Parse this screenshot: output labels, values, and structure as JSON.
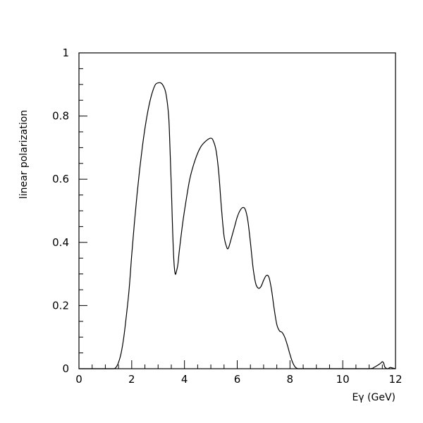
{
  "chart_data": {
    "type": "line",
    "title": "",
    "xlabel": "Eγ (GeV)",
    "ylabel": "linear polarization",
    "xlim": [
      0,
      12
    ],
    "ylim": [
      0,
      1
    ],
    "x_ticks": [
      0,
      2,
      4,
      6,
      8,
      10,
      12
    ],
    "x_tick_labels": [
      "0",
      "2",
      "4",
      "6",
      "8",
      "10",
      "12"
    ],
    "y_ticks": [
      0,
      0.2,
      0.4,
      0.6,
      0.8,
      1
    ],
    "y_tick_labels": [
      "0",
      "0.2",
      "0.4",
      "0.6",
      "0.8",
      "1"
    ],
    "grid": false,
    "legend": "none",
    "line_color": "#000000",
    "series": [
      {
        "x": [
          0,
          1.0,
          1.3,
          1.4,
          1.5,
          1.6,
          1.7,
          1.8,
          1.9,
          2.0,
          2.1,
          2.2,
          2.3,
          2.4,
          2.5,
          2.6,
          2.7,
          2.8,
          2.9,
          3.0,
          3.1,
          3.2,
          3.3,
          3.4,
          3.45,
          3.5,
          3.55,
          3.6,
          3.65,
          3.7,
          3.75,
          3.8,
          3.9,
          4.0,
          4.2,
          4.4,
          4.6,
          4.8,
          5.0,
          5.1,
          5.2,
          5.3,
          5.4,
          5.5,
          5.6,
          5.65,
          5.7,
          5.8,
          5.9,
          6.0,
          6.1,
          6.2,
          6.3,
          6.4,
          6.5,
          6.6,
          6.7,
          6.8,
          6.9,
          7.0,
          7.1,
          7.2,
          7.3,
          7.4,
          7.5,
          7.6,
          7.7,
          7.8,
          7.9,
          8.0,
          8.1,
          8.2,
          8.3,
          8.4,
          8.5,
          9.0,
          10.0,
          11.0,
          11.2,
          11.4,
          11.5,
          11.55,
          11.6,
          11.7,
          11.8,
          11.9,
          12.0
        ],
        "y": [
          0,
          0,
          0.0,
          0.004,
          0.02,
          0.05,
          0.1,
          0.17,
          0.25,
          0.36,
          0.46,
          0.55,
          0.63,
          0.7,
          0.76,
          0.81,
          0.85,
          0.88,
          0.9,
          0.905,
          0.905,
          0.895,
          0.87,
          0.8,
          0.7,
          0.58,
          0.44,
          0.34,
          0.3,
          0.31,
          0.33,
          0.37,
          0.44,
          0.5,
          0.6,
          0.66,
          0.7,
          0.72,
          0.73,
          0.72,
          0.69,
          0.62,
          0.51,
          0.42,
          0.385,
          0.38,
          0.39,
          0.42,
          0.45,
          0.48,
          0.5,
          0.51,
          0.505,
          0.47,
          0.4,
          0.32,
          0.27,
          0.255,
          0.26,
          0.28,
          0.295,
          0.29,
          0.25,
          0.19,
          0.14,
          0.12,
          0.115,
          0.1,
          0.075,
          0.045,
          0.02,
          0.005,
          0,
          0,
          0,
          0,
          0,
          0,
          0.005,
          0.015,
          0.022,
          0.018,
          0.005,
          0,
          0.004,
          0.002,
          0
        ]
      }
    ]
  }
}
